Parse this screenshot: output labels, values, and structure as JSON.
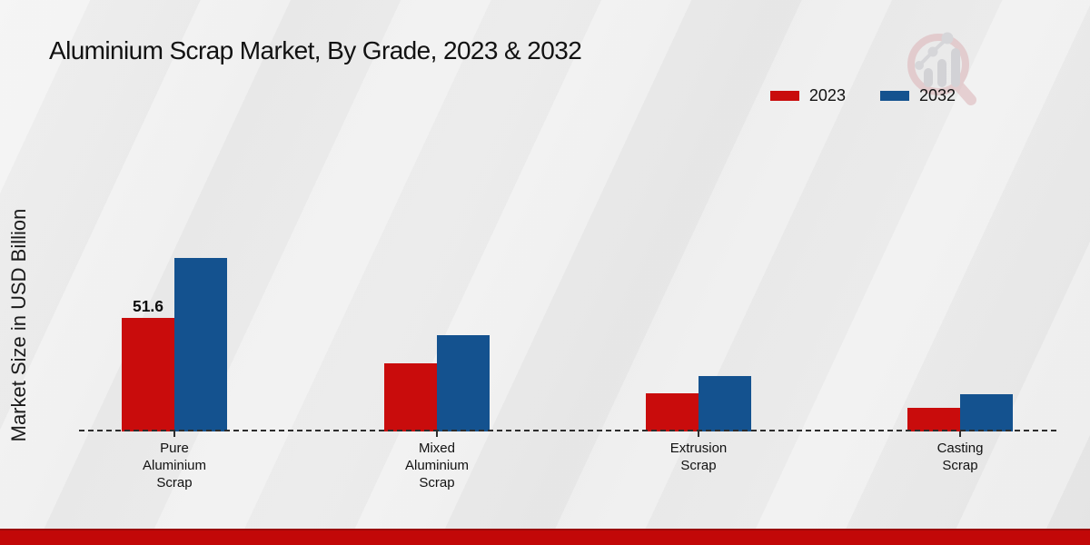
{
  "page": {
    "title": "Aluminium Scrap Market, By Grade, 2023 & 2032"
  },
  "watermark": {
    "icon": "magnifier-growth-chart-logo",
    "ring_color": "#dcb3b7",
    "bars_color": "#bfbfc5"
  },
  "colors": {
    "series_2023": "#c90c0c",
    "series_2032": "#14528f",
    "bottom_strip": "#c20808",
    "baseline": "#2d2d2d"
  },
  "chart_data": {
    "type": "bar",
    "title": "Aluminium Scrap Market, By Grade, 2023 & 2032",
    "xlabel": "",
    "ylabel": "Market Size in USD Billion",
    "categories": [
      "Pure Aluminium Scrap",
      "Mixed Aluminium Scrap",
      "Extrusion Scrap",
      "Casting Scrap"
    ],
    "category_label_lines": [
      [
        "Pure",
        "Aluminium",
        "Scrap"
      ],
      [
        "Mixed",
        "Aluminium",
        "Scrap"
      ],
      [
        "Extrusion",
        "Scrap"
      ],
      [
        "Casting",
        "Scrap"
      ]
    ],
    "series": [
      {
        "name": "2023",
        "color": "#c90c0c",
        "values": [
          51.6,
          31.0,
          17.3,
          10.7
        ]
      },
      {
        "name": "2032",
        "color": "#14528f",
        "values": [
          78.9,
          43.8,
          25.2,
          16.9
        ]
      }
    ],
    "annotations": [
      {
        "series_index": 0,
        "category_index": 0,
        "text": "51.6"
      }
    ],
    "ylim": [
      0,
      80
    ],
    "grid": false,
    "legend_position": "top-right",
    "baseline_style": "dashed"
  }
}
